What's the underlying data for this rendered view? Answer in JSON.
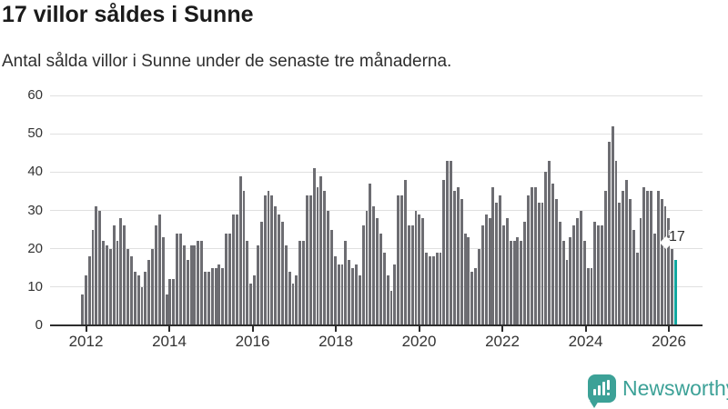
{
  "header": {
    "title": "17 villor såldes i Sunne",
    "subtitle": "Antal sålda villor i Sunne under de senaste tre månaderna."
  },
  "chart_data": {
    "type": "bar",
    "title": "17 villor såldes i Sunne",
    "subtitle": "Antal sålda villor i Sunne under de senaste tre månaderna.",
    "unit": "sålda villor (rullande 3 månader)",
    "frequency": "monthly",
    "x_start": "2012-01",
    "x_end": "2026-02",
    "xlabel": "",
    "ylabel": "",
    "ylim": [
      0,
      60
    ],
    "yticks": [
      0,
      10,
      20,
      30,
      40,
      50,
      60
    ],
    "xticks": [
      2012,
      2014,
      2016,
      2018,
      2020,
      2022,
      2024,
      2026
    ],
    "grid": true,
    "legend": false,
    "values": [
      8,
      13,
      18,
      25,
      31,
      30,
      22,
      21,
      20,
      26,
      22,
      28,
      26,
      20,
      18,
      14,
      13,
      10,
      14,
      17,
      20,
      26,
      29,
      23,
      8,
      12,
      12,
      24,
      24,
      21,
      17,
      21,
      21,
      22,
      22,
      14,
      14,
      15,
      15,
      16,
      15,
      24,
      24,
      29,
      29,
      39,
      35,
      22,
      11,
      13,
      21,
      27,
      34,
      35,
      34,
      31,
      29,
      27,
      21,
      14,
      11,
      13,
      22,
      22,
      34,
      34,
      41,
      36,
      39,
      35,
      30,
      25,
      18,
      16,
      16,
      22,
      17,
      15,
      16,
      13,
      26,
      30,
      37,
      31,
      28,
      24,
      19,
      13,
      9,
      16,
      34,
      34,
      38,
      26,
      26,
      30,
      29,
      28,
      19,
      18,
      18,
      19,
      19,
      38,
      43,
      43,
      35,
      36,
      33,
      24,
      23,
      14,
      15,
      20,
      26,
      29,
      28,
      36,
      32,
      34,
      26,
      28,
      22,
      22,
      23,
      22,
      27,
      34,
      36,
      36,
      32,
      32,
      40,
      43,
      37,
      33,
      27,
      22,
      17,
      23,
      26,
      28,
      30,
      22,
      15,
      15,
      27,
      26,
      26,
      35,
      48,
      52,
      43,
      32,
      35,
      38,
      33,
      25,
      19,
      28,
      36,
      35,
      35,
      24,
      35,
      33,
      31,
      28,
      20,
      17
    ],
    "highlight_index": 169,
    "highlight_value": 17,
    "annotation_label": "17",
    "bar_color": "#6d6d72",
    "highlight_color": "#12a7a0"
  },
  "branding": {
    "name": "Newsworthy",
    "icon": "newsworthy-bubble-chart-icon",
    "color": "#3ca197"
  }
}
